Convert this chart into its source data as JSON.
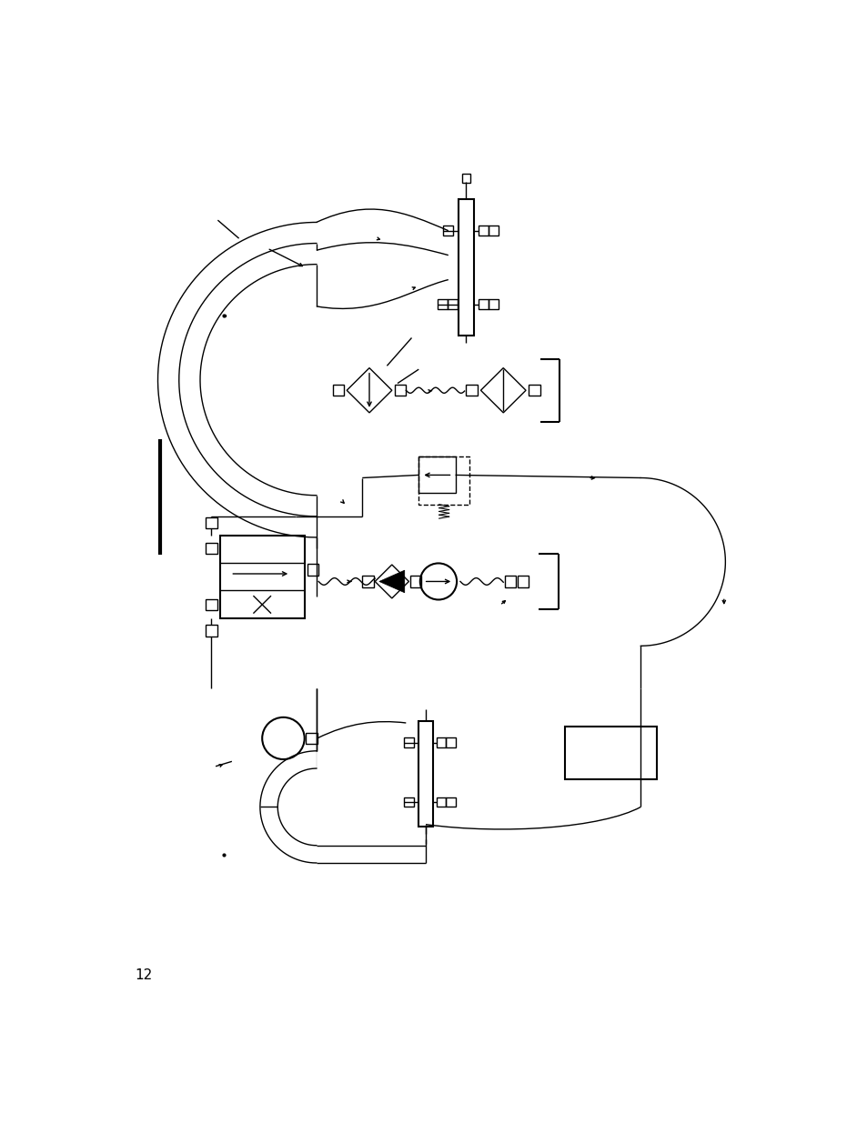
{
  "bg_color": "#ffffff",
  "line_color": "#000000",
  "page_number": "12",
  "fig_width": 9.54,
  "fig_height": 12.35,
  "dpi": 100
}
